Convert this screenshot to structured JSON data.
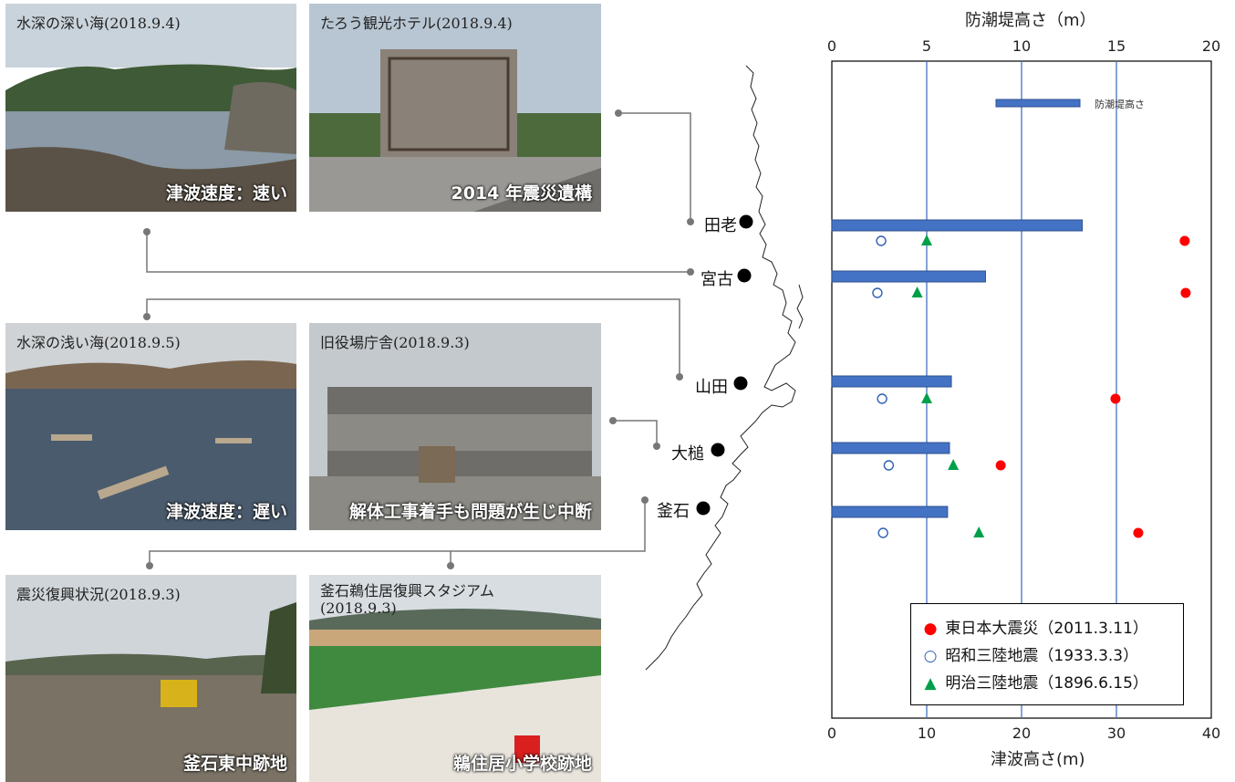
{
  "photos": [
    {
      "caption": "水深の深い海(2018.9.4)",
      "overlay": "津波速度：速い"
    },
    {
      "caption": "たろう観光ホテル(2018.9.4)",
      "overlay": "2014 年震災遺構"
    },
    {
      "caption": "水深の浅い海(2018.9.5)",
      "overlay": "津波速度：遅い"
    },
    {
      "caption": "旧役場庁舎(2018.9.3)",
      "overlay": "解体工事着手も問題が生じ中断"
    },
    {
      "caption": "震災復興状況(2018.9.3)",
      "overlay": "釜石東中跡地"
    },
    {
      "caption": "釜石鵜住居復興スタジアム\n(2018.9.3)",
      "overlay": "鵜住居小学校跡地"
    }
  ],
  "places": [
    "田老",
    "宮古",
    "山田",
    "大槌",
    "釜石"
  ],
  "colors": {
    "bar": "#4472c4",
    "gridline": "#4472c4",
    "tohoku": "#ff0000",
    "showa": "#2f5fb3",
    "meiji": "#00a04a"
  },
  "chart_data": {
    "type": "bar+scatter",
    "top_axis": {
      "label": "防潮堤高さ（m）",
      "range": [
        0,
        20
      ],
      "ticks": [
        "0",
        "5",
        "10",
        "15",
        "20"
      ]
    },
    "bottom_axis": {
      "label": "津波高さ(m)",
      "range": [
        0,
        40
      ],
      "ticks": [
        "0",
        "10",
        "20",
        "30",
        "40"
      ]
    },
    "bar_legend": "防潮堤高さ",
    "categories": [
      "田老",
      "宮古",
      "山田",
      "大槌",
      "釜石"
    ],
    "seawall_height_m": [
      13.2,
      8.1,
      6.3,
      6.2,
      6.1
    ],
    "series": [
      {
        "name": "東日本大震災（2011.3.11）",
        "marker": "filled-circle",
        "values": [
          37.2,
          37.3,
          29.9,
          17.8,
          32.3
        ]
      },
      {
        "name": "昭和三陸地震（1933.3.3）",
        "marker": "open-circle",
        "values": [
          5.2,
          4.8,
          5.3,
          6.0,
          5.4
        ]
      },
      {
        "name": "明治三陸地震（1896.6.15）",
        "marker": "triangle",
        "values": [
          10.0,
          9.0,
          10.0,
          12.8,
          15.5
        ]
      }
    ],
    "grid": "vertical at 10, 20, 30",
    "legend_position": "bottom-right"
  }
}
